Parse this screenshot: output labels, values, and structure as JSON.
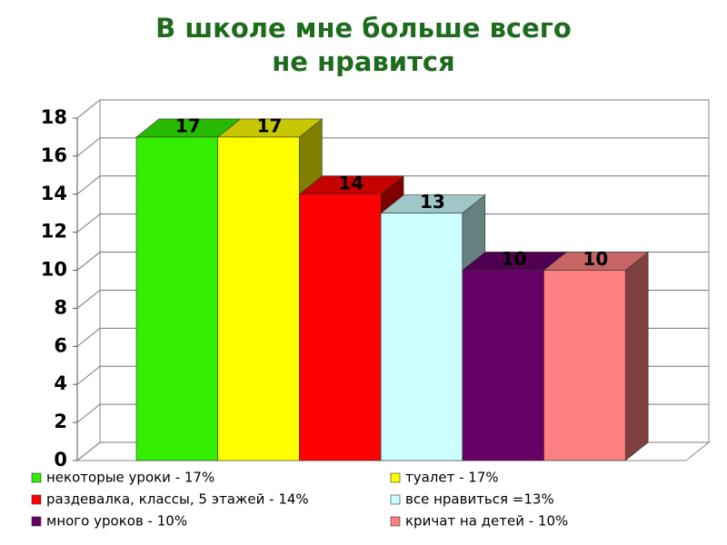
{
  "chart_data": {
    "type": "bar3d",
    "title": [
      "В школе мне больше всего",
      "не нравится"
    ],
    "categories": [
      null
    ],
    "series": [
      {
        "name": "некоторые уроки - 17%",
        "color": "#33ee00",
        "values": [
          17
        ]
      },
      {
        "name": "туалет - 17%",
        "color": "#ffff00",
        "values": [
          17
        ]
      },
      {
        "name": "раздевалка, классы, 5 этажей - 14%",
        "color": "#ff0000",
        "values": [
          14
        ]
      },
      {
        "name": "все нравиться =13%",
        "color": "#ccffff",
        "values": [
          13
        ]
      },
      {
        "name": "много уроков - 10%",
        "color": "#660066",
        "values": [
          10
        ]
      },
      {
        "name": "кричат на детей - 10%",
        "color": "#ff8080",
        "values": [
          10
        ]
      }
    ],
    "ylim": [
      0,
      18
    ],
    "yticks": [
      0,
      2,
      4,
      6,
      8,
      10,
      12,
      14,
      16,
      18
    ],
    "grid": true
  }
}
